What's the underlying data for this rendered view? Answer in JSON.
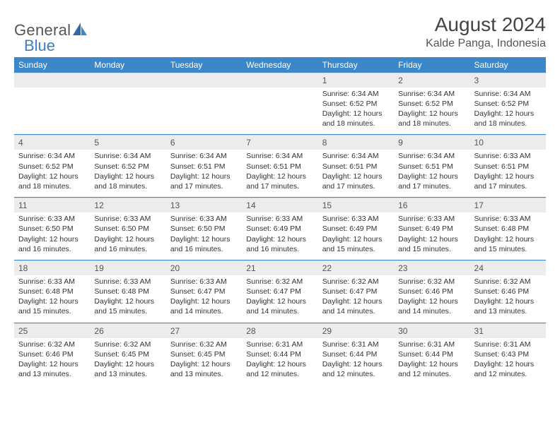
{
  "brand": {
    "general": "General",
    "blue": "Blue"
  },
  "title": {
    "month": "August 2024",
    "location": "Kalde Panga, Indonesia"
  },
  "colors": {
    "header_bg": "#3b87c8",
    "header_text": "#ffffff",
    "numrow_bg": "#ececec",
    "sep_line": "#3b87c8",
    "page_bg": "#ffffff",
    "text": "#333333",
    "brand_gray": "#555555",
    "brand_blue": "#3b7fc4"
  },
  "typography": {
    "title_fontsize": 28,
    "location_fontsize": 16,
    "dow_fontsize": 12,
    "daynum_fontsize": 12,
    "cell_fontsize": 10.5
  },
  "days_of_week": [
    "Sunday",
    "Monday",
    "Tuesday",
    "Wednesday",
    "Thursday",
    "Friday",
    "Saturday"
  ],
  "weeks": [
    [
      null,
      null,
      null,
      null,
      {
        "n": "1",
        "lines": [
          "Sunrise: 6:34 AM",
          "Sunset: 6:52 PM",
          "Daylight: 12 hours",
          "and 18 minutes."
        ]
      },
      {
        "n": "2",
        "lines": [
          "Sunrise: 6:34 AM",
          "Sunset: 6:52 PM",
          "Daylight: 12 hours",
          "and 18 minutes."
        ]
      },
      {
        "n": "3",
        "lines": [
          "Sunrise: 6:34 AM",
          "Sunset: 6:52 PM",
          "Daylight: 12 hours",
          "and 18 minutes."
        ]
      }
    ],
    [
      {
        "n": "4",
        "lines": [
          "Sunrise: 6:34 AM",
          "Sunset: 6:52 PM",
          "Daylight: 12 hours",
          "and 18 minutes."
        ]
      },
      {
        "n": "5",
        "lines": [
          "Sunrise: 6:34 AM",
          "Sunset: 6:52 PM",
          "Daylight: 12 hours",
          "and 18 minutes."
        ]
      },
      {
        "n": "6",
        "lines": [
          "Sunrise: 6:34 AM",
          "Sunset: 6:51 PM",
          "Daylight: 12 hours",
          "and 17 minutes."
        ]
      },
      {
        "n": "7",
        "lines": [
          "Sunrise: 6:34 AM",
          "Sunset: 6:51 PM",
          "Daylight: 12 hours",
          "and 17 minutes."
        ]
      },
      {
        "n": "8",
        "lines": [
          "Sunrise: 6:34 AM",
          "Sunset: 6:51 PM",
          "Daylight: 12 hours",
          "and 17 minutes."
        ]
      },
      {
        "n": "9",
        "lines": [
          "Sunrise: 6:34 AM",
          "Sunset: 6:51 PM",
          "Daylight: 12 hours",
          "and 17 minutes."
        ]
      },
      {
        "n": "10",
        "lines": [
          "Sunrise: 6:33 AM",
          "Sunset: 6:51 PM",
          "Daylight: 12 hours",
          "and 17 minutes."
        ]
      }
    ],
    [
      {
        "n": "11",
        "lines": [
          "Sunrise: 6:33 AM",
          "Sunset: 6:50 PM",
          "Daylight: 12 hours",
          "and 16 minutes."
        ]
      },
      {
        "n": "12",
        "lines": [
          "Sunrise: 6:33 AM",
          "Sunset: 6:50 PM",
          "Daylight: 12 hours",
          "and 16 minutes."
        ]
      },
      {
        "n": "13",
        "lines": [
          "Sunrise: 6:33 AM",
          "Sunset: 6:50 PM",
          "Daylight: 12 hours",
          "and 16 minutes."
        ]
      },
      {
        "n": "14",
        "lines": [
          "Sunrise: 6:33 AM",
          "Sunset: 6:49 PM",
          "Daylight: 12 hours",
          "and 16 minutes."
        ]
      },
      {
        "n": "15",
        "lines": [
          "Sunrise: 6:33 AM",
          "Sunset: 6:49 PM",
          "Daylight: 12 hours",
          "and 15 minutes."
        ]
      },
      {
        "n": "16",
        "lines": [
          "Sunrise: 6:33 AM",
          "Sunset: 6:49 PM",
          "Daylight: 12 hours",
          "and 15 minutes."
        ]
      },
      {
        "n": "17",
        "lines": [
          "Sunrise: 6:33 AM",
          "Sunset: 6:48 PM",
          "Daylight: 12 hours",
          "and 15 minutes."
        ]
      }
    ],
    [
      {
        "n": "18",
        "lines": [
          "Sunrise: 6:33 AM",
          "Sunset: 6:48 PM",
          "Daylight: 12 hours",
          "and 15 minutes."
        ]
      },
      {
        "n": "19",
        "lines": [
          "Sunrise: 6:33 AM",
          "Sunset: 6:48 PM",
          "Daylight: 12 hours",
          "and 15 minutes."
        ]
      },
      {
        "n": "20",
        "lines": [
          "Sunrise: 6:33 AM",
          "Sunset: 6:47 PM",
          "Daylight: 12 hours",
          "and 14 minutes."
        ]
      },
      {
        "n": "21",
        "lines": [
          "Sunrise: 6:32 AM",
          "Sunset: 6:47 PM",
          "Daylight: 12 hours",
          "and 14 minutes."
        ]
      },
      {
        "n": "22",
        "lines": [
          "Sunrise: 6:32 AM",
          "Sunset: 6:47 PM",
          "Daylight: 12 hours",
          "and 14 minutes."
        ]
      },
      {
        "n": "23",
        "lines": [
          "Sunrise: 6:32 AM",
          "Sunset: 6:46 PM",
          "Daylight: 12 hours",
          "and 14 minutes."
        ]
      },
      {
        "n": "24",
        "lines": [
          "Sunrise: 6:32 AM",
          "Sunset: 6:46 PM",
          "Daylight: 12 hours",
          "and 13 minutes."
        ]
      }
    ],
    [
      {
        "n": "25",
        "lines": [
          "Sunrise: 6:32 AM",
          "Sunset: 6:46 PM",
          "Daylight: 12 hours",
          "and 13 minutes."
        ]
      },
      {
        "n": "26",
        "lines": [
          "Sunrise: 6:32 AM",
          "Sunset: 6:45 PM",
          "Daylight: 12 hours",
          "and 13 minutes."
        ]
      },
      {
        "n": "27",
        "lines": [
          "Sunrise: 6:32 AM",
          "Sunset: 6:45 PM",
          "Daylight: 12 hours",
          "and 13 minutes."
        ]
      },
      {
        "n": "28",
        "lines": [
          "Sunrise: 6:31 AM",
          "Sunset: 6:44 PM",
          "Daylight: 12 hours",
          "and 12 minutes."
        ]
      },
      {
        "n": "29",
        "lines": [
          "Sunrise: 6:31 AM",
          "Sunset: 6:44 PM",
          "Daylight: 12 hours",
          "and 12 minutes."
        ]
      },
      {
        "n": "30",
        "lines": [
          "Sunrise: 6:31 AM",
          "Sunset: 6:44 PM",
          "Daylight: 12 hours",
          "and 12 minutes."
        ]
      },
      {
        "n": "31",
        "lines": [
          "Sunrise: 6:31 AM",
          "Sunset: 6:43 PM",
          "Daylight: 12 hours",
          "and 12 minutes."
        ]
      }
    ]
  ]
}
